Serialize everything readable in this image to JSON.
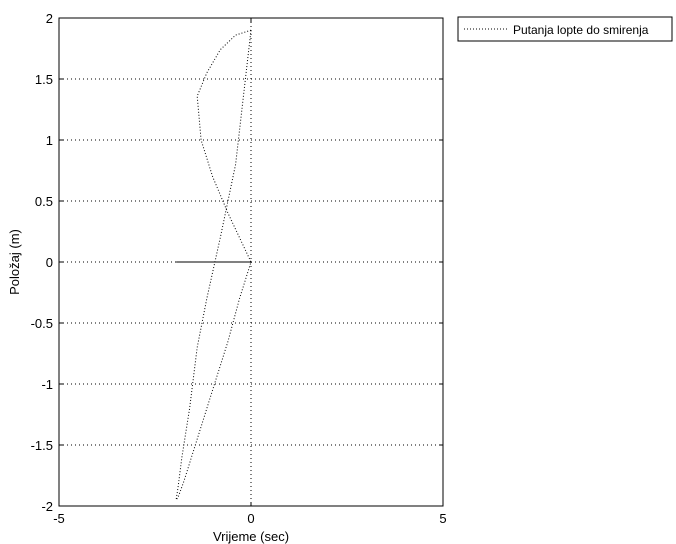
{
  "chart_data": {
    "type": "line",
    "title": "",
    "xlabel": "Vrijeme (sec)",
    "ylabel": "Položaj (m)",
    "xlim": [
      -5,
      5
    ],
    "ylim": [
      -2,
      2
    ],
    "xticks": [
      -5,
      0,
      5
    ],
    "yticks": [
      -2,
      -1.5,
      -1,
      -0.5,
      0,
      0.5,
      1,
      1.5,
      2
    ],
    "xtick_labels": [
      "-5",
      "0",
      "5"
    ],
    "ytick_labels": [
      "-2",
      "-1.5",
      "-1",
      "-0.5",
      "0",
      "0.5",
      "1",
      "1.5",
      "2"
    ],
    "grid": true,
    "legend_position": "outside-top-right",
    "series": [
      {
        "name": "Putanja lopte do smirenja",
        "line_style": "dotted",
        "color": "#000000",
        "x": [
          0,
          -0.4,
          -0.8,
          -1.15,
          -1.4,
          -1.3,
          -1.0,
          -0.6,
          -0.3,
          0,
          -0.3,
          -0.6,
          -0.95,
          -1.3,
          -1.5,
          -1.75,
          -1.9,
          -1.95,
          -1.9,
          -1.8,
          -1.6,
          -1.4,
          -1.15,
          -0.8,
          -0.4,
          0
        ],
        "y": [
          1.9,
          1.86,
          1.74,
          1.55,
          1.36,
          1.0,
          0.7,
          0.4,
          0.2,
          0,
          -0.3,
          -0.65,
          -1.0,
          -1.35,
          -1.55,
          -1.8,
          -1.93,
          -1.95,
          -1.85,
          -1.6,
          -1.2,
          -0.7,
          -0.3,
          0.2,
          0.8,
          1.9
        ]
      }
    ]
  }
}
